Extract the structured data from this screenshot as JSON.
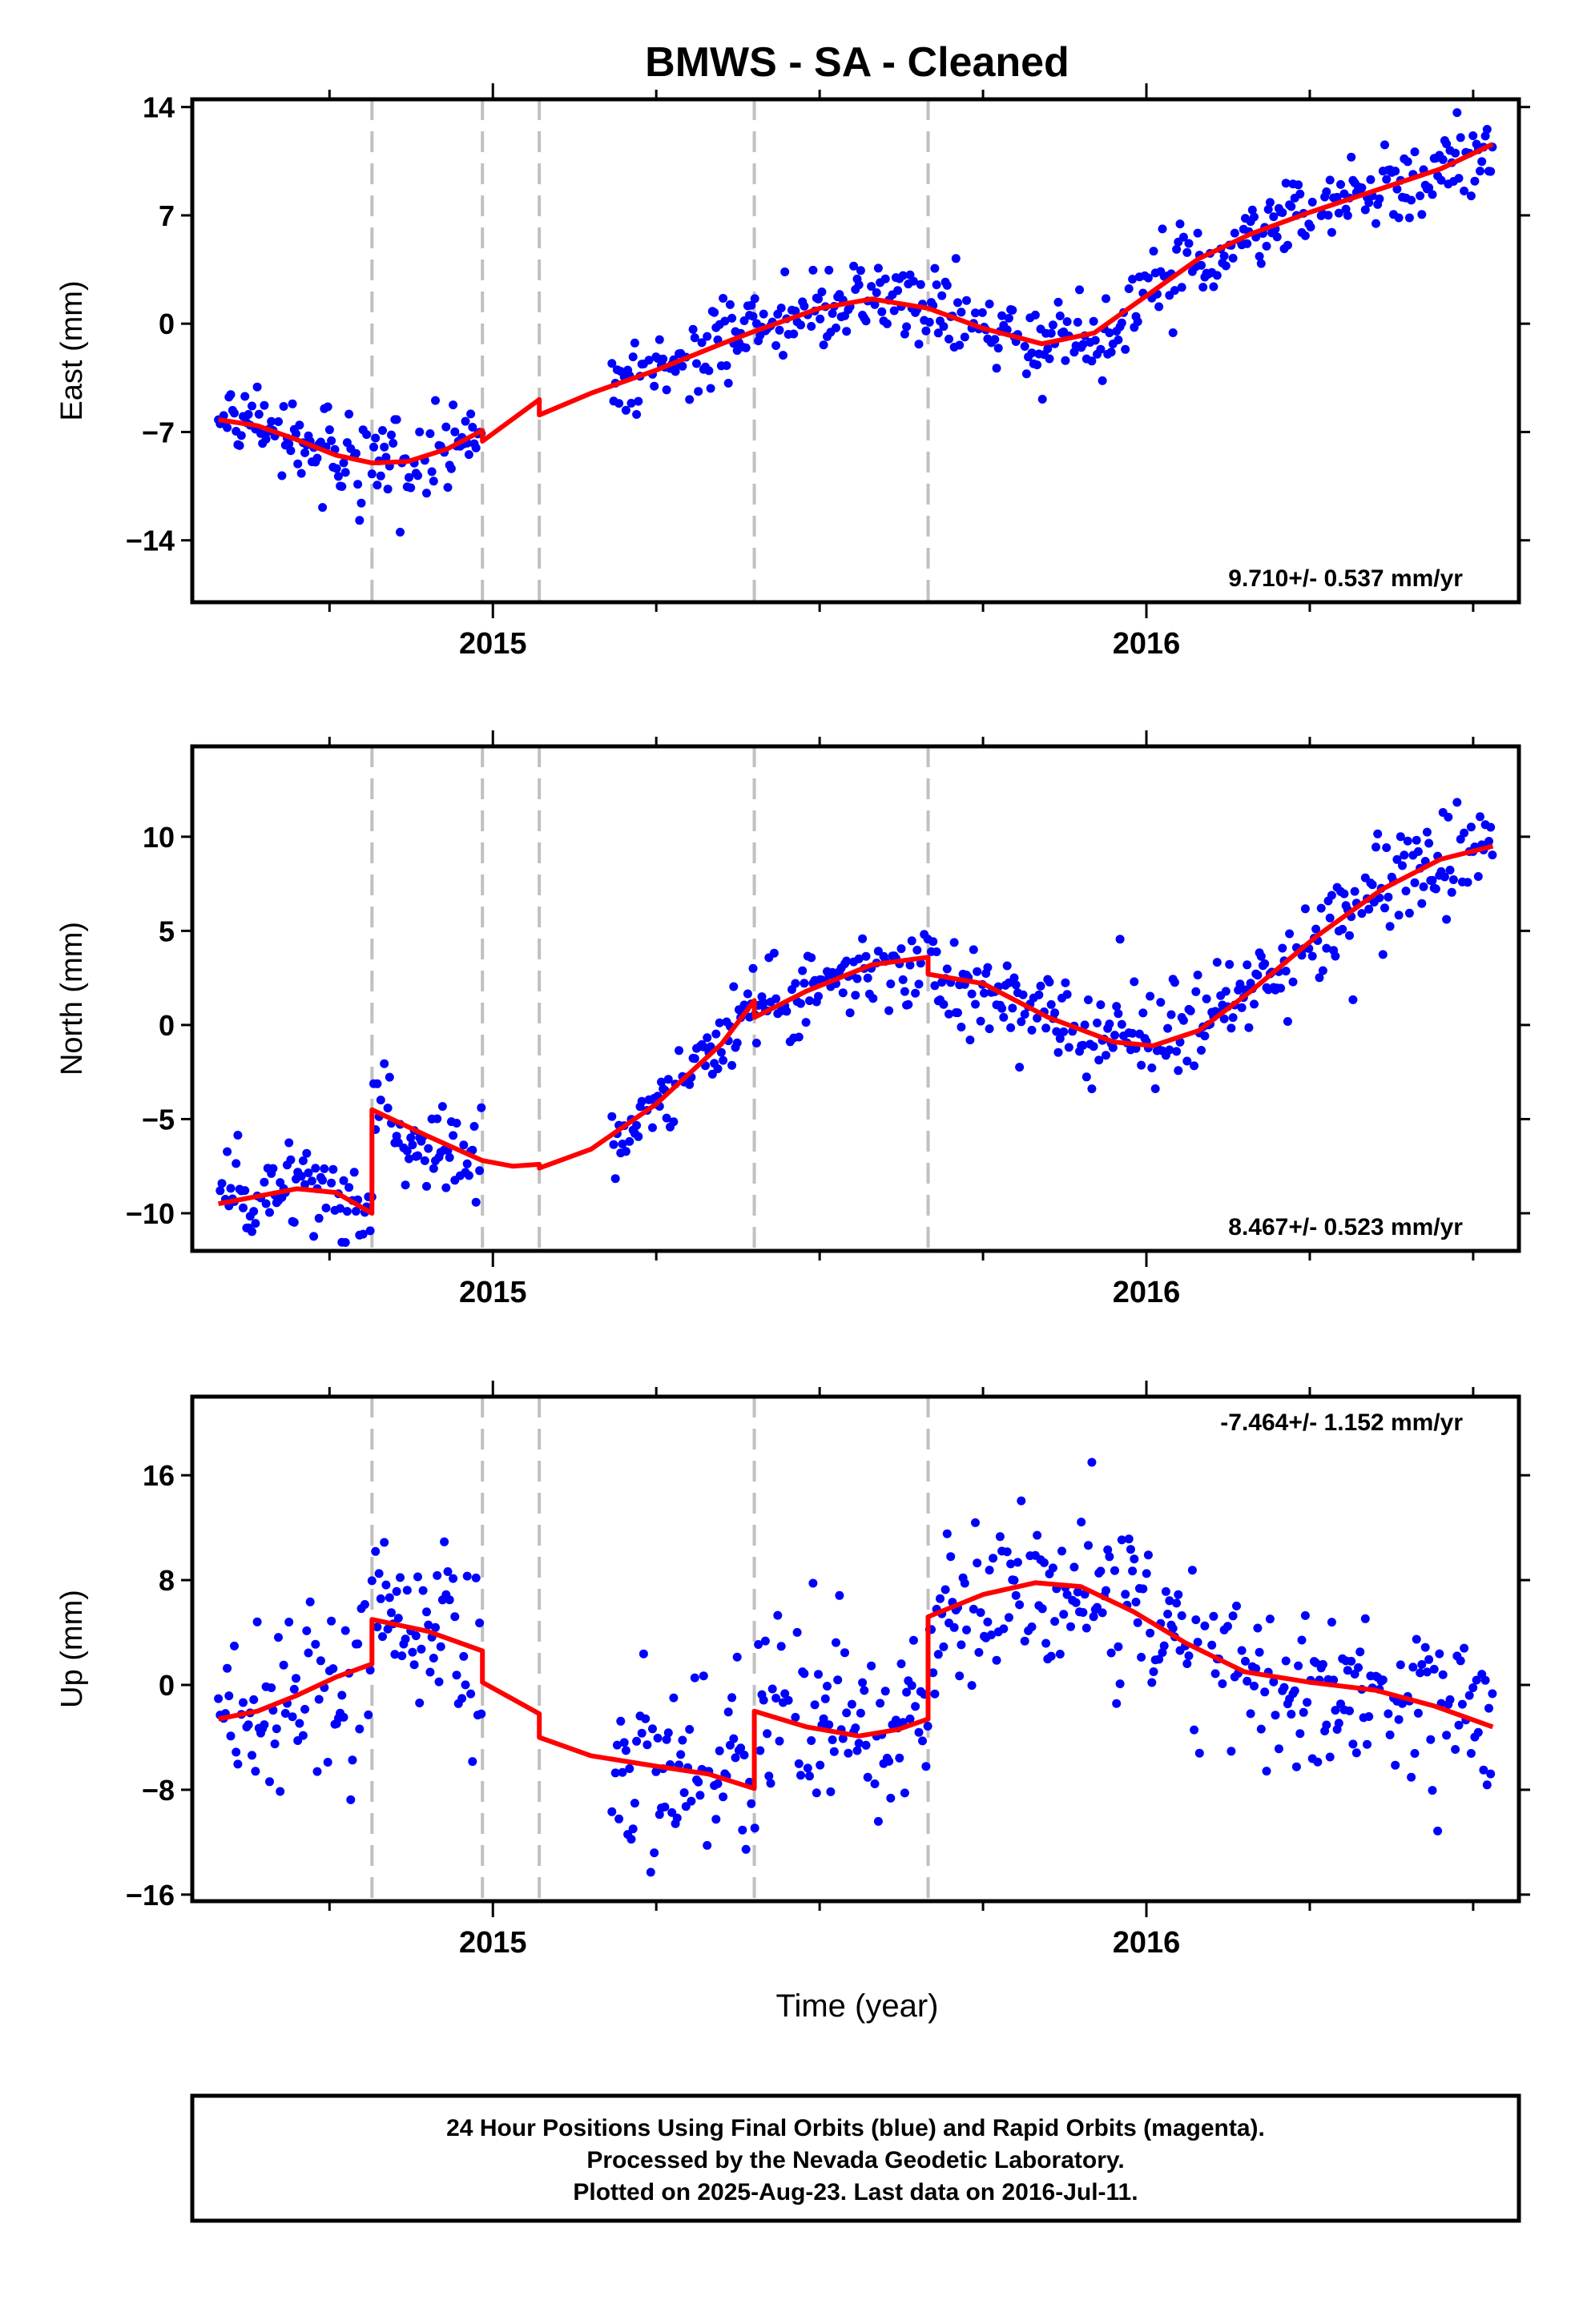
{
  "title": "BMWS  - SA - Cleaned",
  "xlabel": "Time (year)",
  "footer": {
    "line1": "24 Hour Positions Using Final Orbits (blue) and Rapid Orbits (magenta).",
    "line2": "Processed by the Nevada Geodetic Laboratory.",
    "line3": "Plotted on 2025-Aug-23. Last data on 2016-Jul-11."
  },
  "colors": {
    "points": "#0000ff",
    "fit": "#ff0000",
    "breaks": "#c0c0c0"
  },
  "chart_data": [
    {
      "type": "scatter",
      "id": "east",
      "ylabel": "East (mm)",
      "xlim": [
        2014.54,
        2016.57
      ],
      "ylim": [
        -18.0,
        14.5
      ],
      "yticks": [
        -14,
        -7,
        0,
        7,
        14
      ],
      "xticks": [
        {
          "value": 2015,
          "label": "2015"
        },
        {
          "value": 2016,
          "label": "2016"
        }
      ],
      "rate_text": "9.710+/- 0.537 mm/yr",
      "rate_position": "bottom-right",
      "breaks": [
        2014.815,
        2014.984,
        2015.071,
        2015.4,
        2015.666
      ],
      "fit": [
        {
          "x": 2014.58,
          "y": -6.2
        },
        {
          "x": 2014.64,
          "y": -6.6
        },
        {
          "x": 2014.7,
          "y": -7.5
        },
        {
          "x": 2014.76,
          "y": -8.5
        },
        {
          "x": 2014.815,
          "y": -9.0
        },
        {
          "x": 2014.87,
          "y": -8.9
        },
        {
          "x": 2014.93,
          "y": -8.1
        },
        {
          "x": 2014.984,
          "y": -6.9
        },
        {
          "x": 2014.984,
          "y": -7.6
        },
        {
          "x": 2015.071,
          "y": -4.9
        },
        {
          "x": 2015.071,
          "y": -5.9
        },
        {
          "x": 2015.15,
          "y": -4.5
        },
        {
          "x": 2015.25,
          "y": -3.0
        },
        {
          "x": 2015.35,
          "y": -1.3
        },
        {
          "x": 2015.4,
          "y": -0.5
        },
        {
          "x": 2015.5,
          "y": 1.0
        },
        {
          "x": 2015.58,
          "y": 1.6
        },
        {
          "x": 2015.666,
          "y": 1.0
        },
        {
          "x": 2015.75,
          "y": -0.3
        },
        {
          "x": 2015.84,
          "y": -1.3
        },
        {
          "x": 2015.92,
          "y": -0.6
        },
        {
          "x": 2016.0,
          "y": 1.8
        },
        {
          "x": 2016.08,
          "y": 4.2
        },
        {
          "x": 2016.16,
          "y": 5.8
        },
        {
          "x": 2016.25,
          "y": 7.2
        },
        {
          "x": 2016.35,
          "y": 8.6
        },
        {
          "x": 2016.45,
          "y": 10.0
        },
        {
          "x": 2016.53,
          "y": 11.6
        }
      ]
    },
    {
      "type": "scatter",
      "id": "north",
      "ylabel": "North (mm)",
      "xlim": [
        2014.54,
        2016.57
      ],
      "ylim": [
        -12.0,
        14.8
      ],
      "yticks": [
        -10,
        -5,
        0,
        5,
        10
      ],
      "xticks": [
        {
          "value": 2015,
          "label": "2015"
        },
        {
          "value": 2016,
          "label": "2016"
        }
      ],
      "rate_text": "8.467+/- 0.523 mm/yr",
      "rate_position": "bottom-right",
      "breaks": [
        2014.815,
        2014.984,
        2015.071,
        2015.4,
        2015.666
      ],
      "fit": [
        {
          "x": 2014.58,
          "y": -9.5
        },
        {
          "x": 2014.64,
          "y": -9.1
        },
        {
          "x": 2014.7,
          "y": -8.7
        },
        {
          "x": 2014.76,
          "y": -8.9
        },
        {
          "x": 2014.815,
          "y": -10.0
        },
        {
          "x": 2014.815,
          "y": -4.5
        },
        {
          "x": 2014.9,
          "y": -5.9
        },
        {
          "x": 2014.984,
          "y": -7.2
        },
        {
          "x": 2015.03,
          "y": -7.5
        },
        {
          "x": 2015.071,
          "y": -7.4
        },
        {
          "x": 2015.071,
          "y": -7.6
        },
        {
          "x": 2015.15,
          "y": -6.6
        },
        {
          "x": 2015.25,
          "y": -4.2
        },
        {
          "x": 2015.35,
          "y": -1.0
        },
        {
          "x": 2015.4,
          "y": 1.3
        },
        {
          "x": 2015.4,
          "y": 0.4
        },
        {
          "x": 2015.48,
          "y": 1.8
        },
        {
          "x": 2015.58,
          "y": 3.2
        },
        {
          "x": 2015.666,
          "y": 3.6
        },
        {
          "x": 2015.666,
          "y": 2.7
        },
        {
          "x": 2015.75,
          "y": 2.2
        },
        {
          "x": 2015.85,
          "y": 0.4
        },
        {
          "x": 2015.95,
          "y": -0.9
        },
        {
          "x": 2016.01,
          "y": -1.1
        },
        {
          "x": 2016.08,
          "y": -0.3
        },
        {
          "x": 2016.16,
          "y": 1.8
        },
        {
          "x": 2016.26,
          "y": 4.7
        },
        {
          "x": 2016.36,
          "y": 7.2
        },
        {
          "x": 2016.45,
          "y": 8.8
        },
        {
          "x": 2016.53,
          "y": 9.5
        }
      ]
    },
    {
      "type": "scatter",
      "id": "up",
      "ylabel": "Up (mm)",
      "xlim": [
        2014.54,
        2016.57
      ],
      "ylim": [
        -16.5,
        22.0
      ],
      "yticks": [
        -16,
        -8,
        0,
        8,
        16
      ],
      "xticks": [
        {
          "value": 2015,
          "label": "2015"
        },
        {
          "value": 2016,
          "label": "2016"
        }
      ],
      "rate_text": "-7.464+/- 1.152 mm/yr",
      "rate_position": "top-right",
      "breaks": [
        2014.815,
        2014.984,
        2015.071,
        2015.4,
        2015.666
      ],
      "fit": [
        {
          "x": 2014.58,
          "y": -2.6
        },
        {
          "x": 2014.64,
          "y": -2.0
        },
        {
          "x": 2014.7,
          "y": -0.8
        },
        {
          "x": 2014.76,
          "y": 0.6
        },
        {
          "x": 2014.815,
          "y": 1.6
        },
        {
          "x": 2014.815,
          "y": 5.0
        },
        {
          "x": 2014.9,
          "y": 4.1
        },
        {
          "x": 2014.984,
          "y": 2.6
        },
        {
          "x": 2014.984,
          "y": 0.2
        },
        {
          "x": 2015.071,
          "y": -2.2
        },
        {
          "x": 2015.071,
          "y": -4.0
        },
        {
          "x": 2015.15,
          "y": -5.4
        },
        {
          "x": 2015.25,
          "y": -6.2
        },
        {
          "x": 2015.33,
          "y": -6.8
        },
        {
          "x": 2015.4,
          "y": -7.9
        },
        {
          "x": 2015.4,
          "y": -2.0
        },
        {
          "x": 2015.48,
          "y": -3.2
        },
        {
          "x": 2015.56,
          "y": -3.9
        },
        {
          "x": 2015.62,
          "y": -3.4
        },
        {
          "x": 2015.666,
          "y": -2.6
        },
        {
          "x": 2015.666,
          "y": 5.2
        },
        {
          "x": 2015.75,
          "y": 6.9
        },
        {
          "x": 2015.83,
          "y": 7.8
        },
        {
          "x": 2015.9,
          "y": 7.5
        },
        {
          "x": 2015.98,
          "y": 5.6
        },
        {
          "x": 2016.06,
          "y": 3.2
        },
        {
          "x": 2016.15,
          "y": 1.0
        },
        {
          "x": 2016.25,
          "y": 0.2
        },
        {
          "x": 2016.35,
          "y": -0.4
        },
        {
          "x": 2016.44,
          "y": -1.6
        },
        {
          "x": 2016.53,
          "y": -3.2
        }
      ]
    }
  ]
}
